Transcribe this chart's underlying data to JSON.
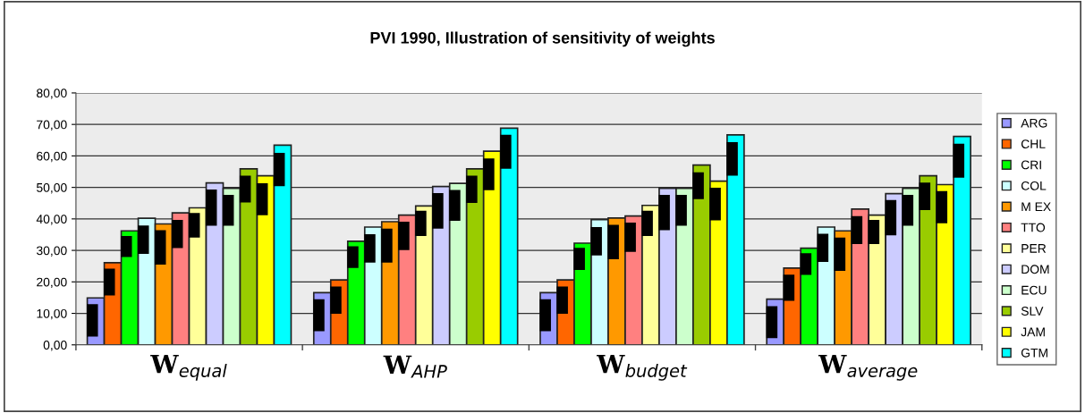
{
  "chart_data": {
    "type": "bar",
    "title": "PVI 1990, Illustration of sensitivity of weights",
    "categories": [
      "W$_{equal}$",
      "W$_{AHP}$",
      "W$_{budget}$",
      "W$_{average}$"
    ],
    "ylim": [
      0,
      80
    ],
    "yticks": [
      {
        "value": 0,
        "label": "0,00"
      },
      {
        "value": 10,
        "label": "10,00"
      },
      {
        "value": 20,
        "label": "20,00"
      },
      {
        "value": 30,
        "label": "30,00"
      },
      {
        "value": 40,
        "label": "40,00"
      },
      {
        "value": 50,
        "label": "50,00"
      },
      {
        "value": 60,
        "label": "60,00"
      },
      {
        "value": 70,
        "label": "70,00"
      },
      {
        "value": 80,
        "label": "80,00"
      }
    ],
    "grid": "y",
    "legend": "right",
    "series": [
      {
        "name": "ARG",
        "color": "#9999ff",
        "values": [
          14.9,
          16.6,
          16.6,
          14.5
        ],
        "errors": [
          [
            2.6,
            12.9
          ],
          [
            4.3,
            14.5
          ],
          [
            4.3,
            14.5
          ],
          [
            2.1,
            12.3
          ]
        ]
      },
      {
        "name": "CHL",
        "color": "#ff6600",
        "values": [
          26.1,
          20.6,
          20.6,
          24.4
        ],
        "errors": [
          [
            15.7,
            24.2
          ],
          [
            9.9,
            18.5
          ],
          [
            9.9,
            18.5
          ],
          [
            14.0,
            22.3
          ]
        ]
      },
      {
        "name": "CRI",
        "color": "#00ff00",
        "values": [
          36.2,
          32.9,
          32.3,
          30.7
        ],
        "errors": [
          [
            27.9,
            34.6
          ],
          [
            24.4,
            31.3
          ],
          [
            23.8,
            30.8
          ],
          [
            22.2,
            29.1
          ]
        ]
      },
      {
        "name": "COL",
        "color": "#ccffff",
        "values": [
          40.2,
          37.4,
          39.8,
          37.4
        ],
        "errors": [
          [
            28.9,
            37.9
          ],
          [
            26.1,
            35.1
          ],
          [
            28.4,
            37.4
          ],
          [
            26.3,
            35.3
          ]
        ]
      },
      {
        "name": "M EX",
        "color": "#ff9900",
        "values": [
          38.4,
          39.1,
          40.3,
          36.2
        ],
        "errors": [
          [
            25.5,
            36.4
          ],
          [
            26.1,
            36.9
          ],
          [
            27.2,
            38.1
          ],
          [
            23.5,
            34.1
          ]
        ]
      },
      {
        "name": "TTO",
        "color": "#ff8080",
        "values": [
          41.9,
          41.2,
          40.9,
          43.1
        ],
        "errors": [
          [
            30.7,
            39.7
          ],
          [
            30.1,
            39.1
          ],
          [
            29.5,
            38.8
          ],
          [
            32.0,
            40.9
          ]
        ]
      },
      {
        "name": "PER",
        "color": "#ffff99",
        "values": [
          43.5,
          44.1,
          44.3,
          41.2
        ],
        "errors": [
          [
            34.1,
            41.9
          ],
          [
            34.6,
            42.6
          ],
          [
            34.6,
            42.6
          ],
          [
            32.0,
            39.7
          ]
        ]
      },
      {
        "name": "DOM",
        "color": "#ccccff",
        "values": [
          51.4,
          50.3,
          49.7,
          48.0
        ],
        "errors": [
          [
            37.8,
            49.3
          ],
          [
            36.9,
            48.2
          ],
          [
            36.4,
            47.6
          ],
          [
            34.8,
            46.0
          ]
        ]
      },
      {
        "name": "ECU",
        "color": "#ccffcc",
        "values": [
          49.7,
          51.3,
          49.7,
          49.7
        ],
        "errors": [
          [
            37.8,
            47.6
          ],
          [
            39.4,
            49.2
          ],
          [
            37.8,
            47.6
          ],
          [
            37.8,
            47.6
          ]
        ]
      },
      {
        "name": "SLV",
        "color": "#99cc00",
        "values": [
          55.9,
          55.9,
          57.1,
          53.7
        ],
        "errors": [
          [
            45.2,
            53.7
          ],
          [
            45.1,
            53.7
          ],
          [
            46.3,
            54.8
          ],
          [
            42.8,
            51.5
          ]
        ]
      },
      {
        "name": "JAM",
        "color": "#ffff00",
        "values": [
          53.7,
          61.5,
          52.0,
          50.9
        ],
        "errors": [
          [
            41.2,
            51.3
          ],
          [
            49.1,
            59.2
          ],
          [
            39.5,
            49.9
          ],
          [
            38.6,
            48.8
          ]
        ]
      },
      {
        "name": "GTM",
        "color": "#00ffff",
        "values": [
          63.4,
          68.8,
          66.7,
          66.2
        ],
        "errors": [
          [
            50.4,
            61.0
          ],
          [
            55.9,
            66.7
          ],
          [
            53.7,
            64.4
          ],
          [
            53.1,
            63.9
          ]
        ]
      }
    ]
  }
}
